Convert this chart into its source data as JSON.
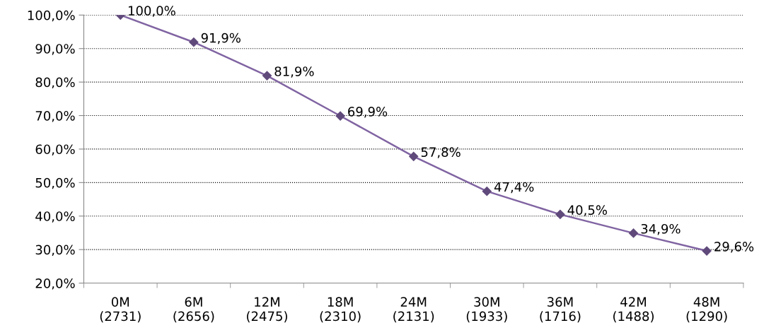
{
  "chart_data": {
    "type": "line",
    "categories": [
      "0M\n(2731)",
      "6M\n(2656)",
      "12M\n(2475)",
      "18M\n(2310)",
      "24M\n(2131)",
      "30M\n(1933)",
      "36M\n(1716)",
      "42M\n(1488)",
      "48M\n(1290)"
    ],
    "series": [
      {
        "color": "#8064a2",
        "values": [
          100.0,
          91.9,
          81.9,
          69.9,
          57.8,
          47.4,
          40.5,
          34.9,
          29.6
        ],
        "value_labels": [
          "100,0%",
          "91,9%",
          "81,9%",
          "69,9%",
          "57,8%",
          "47,4%",
          "40,5%",
          "34,9%",
          "29,6%"
        ]
      }
    ],
    "ylim": [
      20,
      100
    ],
    "yticks": [
      {
        "value": 20,
        "label": "20,0%"
      },
      {
        "value": 30,
        "label": "30,0%"
      },
      {
        "value": 40,
        "label": "40,0%"
      },
      {
        "value": 50,
        "label": "50,0%"
      },
      {
        "value": 60,
        "label": "60,0%"
      },
      {
        "value": 70,
        "label": "70,0%"
      },
      {
        "value": 80,
        "label": "80,0%"
      },
      {
        "value": 90,
        "label": "90,0%"
      },
      {
        "value": 100,
        "label": "100,0%"
      }
    ],
    "grid": "y",
    "marker": "diamond",
    "line_style": "solid",
    "legend": false
  }
}
